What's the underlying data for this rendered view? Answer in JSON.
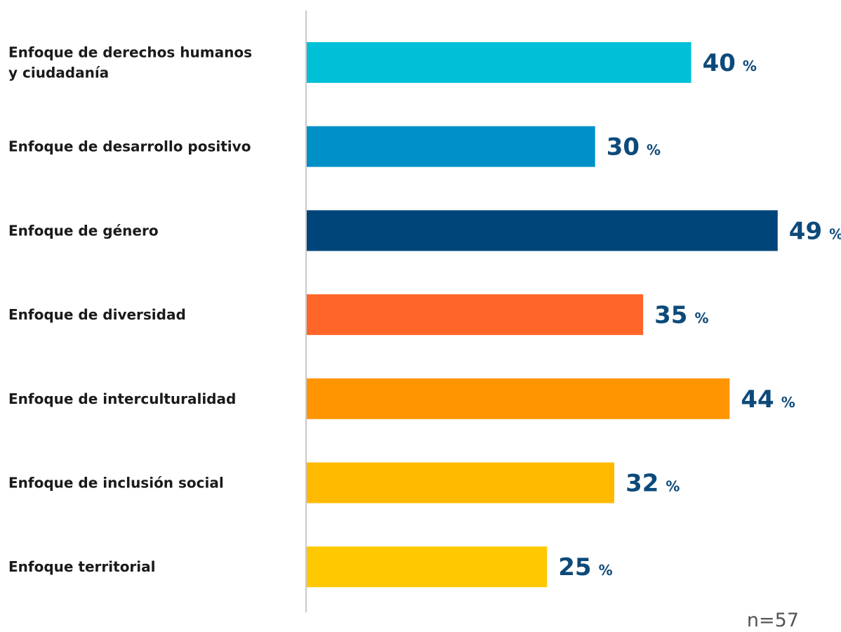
{
  "chart_data": {
    "type": "bar",
    "orientation": "horizontal",
    "categories": [
      [
        "Enfoque de derechos humanos",
        "y ciudadanía"
      ],
      [
        "Enfoque de desarrollo positivo"
      ],
      [
        "Enfoque de género"
      ],
      [
        "Enfoque de diversidad"
      ],
      [
        "Enfoque de interculturalidad"
      ],
      [
        "Enfoque de inclusión social"
      ],
      [
        "Enfoque territorial"
      ]
    ],
    "values": [
      40,
      30,
      49,
      35,
      44,
      32,
      25
    ],
    "value_labels": [
      "40",
      "30",
      "49",
      "35",
      "44",
      "32",
      "25"
    ],
    "unit": "%",
    "bar_colors": [
      "#00c0d8",
      "#0090c8",
      "#00457a",
      "#ff6528",
      "#ff9500",
      "#ffba00",
      "#ffc800"
    ],
    "label_color": "#0d4a7a",
    "axis_color": "#c8c8c8",
    "xlim": [
      0,
      50
    ],
    "grid": false,
    "legend": "none"
  },
  "footnote": "n=57"
}
